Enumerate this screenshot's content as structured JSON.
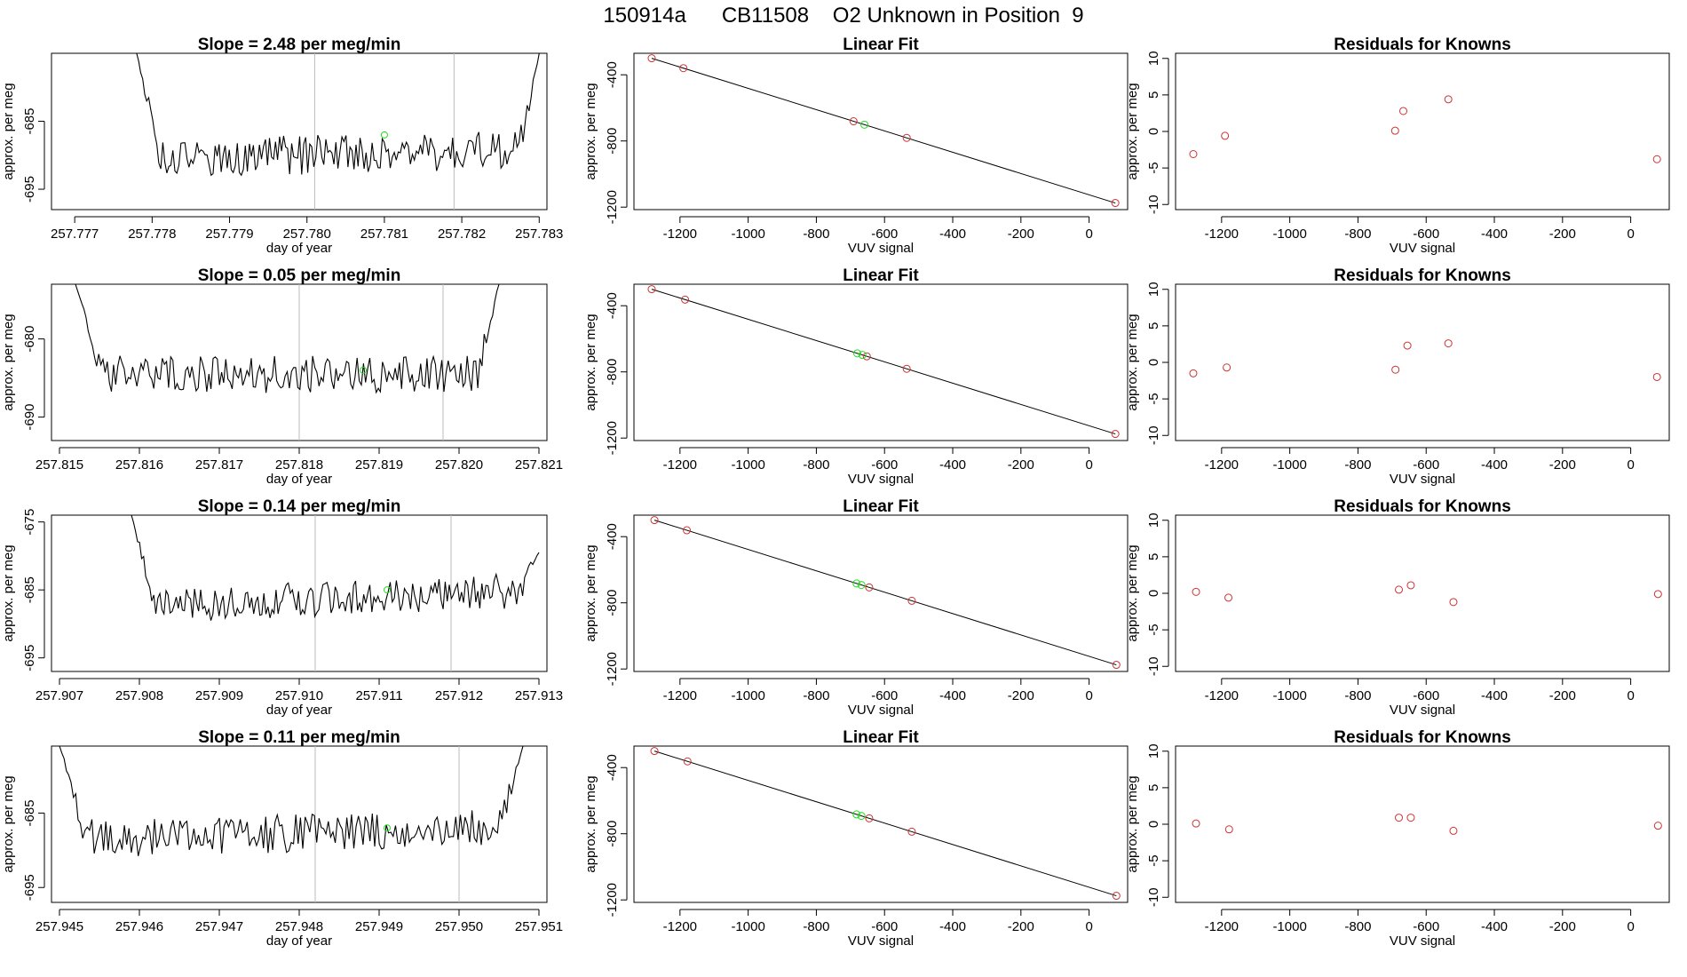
{
  "figure": {
    "title": "150914a      CB11508    O2 Unknown in Position  9"
  },
  "rows": [
    {
      "trace": {
        "title": "Slope =  2.48  per meg/min",
        "xlabel": "day of year",
        "ylabel": "approx. per meg",
        "xlim": [
          257.7767,
          257.7831
        ],
        "ylim": [
          -698,
          -675
        ],
        "xticks": [
          "257.777",
          "257.778",
          "257.779",
          "257.780",
          "257.781",
          "257.782",
          "257.783"
        ],
        "yticks": [
          "-685",
          "-695"
        ],
        "x_start": 257.7778,
        "x_end": 257.783,
        "base": -690.5,
        "rise": 1.3,
        "amp": 1.8,
        "seed": 1,
        "start_y": -675,
        "end_y": -675,
        "vlines": [
          257.7801,
          257.7819
        ],
        "marker": [
          257.781,
          -687
        ]
      },
      "fit": {
        "title": "Linear Fit",
        "xlabel": "VUV signal",
        "ylabel": "approx. per meg",
        "xlim": [
          -1335,
          113
        ],
        "ylim": [
          -1215,
          -270
        ],
        "xticks": [
          "-1200",
          "-1000",
          "-800",
          "-600",
          "-400",
          "-200",
          "0"
        ],
        "yticks": [
          "-400",
          "-800",
          "-1200"
        ],
        "known_x": [
          -1283,
          -1190,
          -691,
          -535,
          77
        ],
        "green_x": [
          -659
        ],
        "line_x": [
          -1283,
          77
        ]
      },
      "resid": {
        "title": "Residuals for Knowns",
        "xlabel": "VUV signal",
        "ylabel": "approx. per meg",
        "xlim": [
          -1335,
          113
        ],
        "ylim": [
          -10.7,
          10.7
        ],
        "xticks": [
          "-1200",
          "-1000",
          "-800",
          "-600",
          "-400",
          "-200",
          "0"
        ],
        "yticks": [
          "-10",
          "-5",
          "0",
          "5",
          "10"
        ],
        "x": [
          -1283,
          -1190,
          -691,
          -667,
          -535,
          77
        ],
        "y": [
          -3.1,
          -0.6,
          0.1,
          2.8,
          4.4,
          -3.8
        ]
      }
    },
    {
      "trace": {
        "title": "Slope =  0.05  per meg/min",
        "xlabel": "day of year",
        "ylabel": "approx. per meg",
        "xlim": [
          257.8149,
          257.8211
        ],
        "ylim": [
          -693,
          -673
        ],
        "xticks": [
          "257.815",
          "257.816",
          "257.817",
          "257.818",
          "257.819",
          "257.820",
          "257.821"
        ],
        "yticks": [
          "-680",
          "-690"
        ],
        "x_start": 257.8152,
        "x_end": 257.8205,
        "base": -684.5,
        "rise": 0,
        "amp": 1.5,
        "seed": 2,
        "start_y": -673,
        "end_y": -673,
        "vlines": [
          257.818,
          257.8198
        ],
        "marker": [
          257.8188,
          -684
        ]
      },
      "fit": {
        "title": "Linear Fit",
        "xlabel": "VUV signal",
        "ylabel": "approx. per meg",
        "xlim": [
          -1335,
          113
        ],
        "ylim": [
          -1215,
          -270
        ],
        "xticks": [
          "-1200",
          "-1000",
          "-800",
          "-600",
          "-400",
          "-200",
          "0"
        ],
        "yticks": [
          "-400",
          "-800",
          "-1200"
        ],
        "known_x": [
          -1283,
          -1185,
          -652,
          -535,
          77
        ],
        "green_x": [
          -680,
          -665
        ],
        "line_x": [
          -1283,
          77
        ]
      },
      "resid": {
        "title": "Residuals for Knowns",
        "xlabel": "VUV signal",
        "ylabel": "approx. per meg",
        "xlim": [
          -1335,
          113
        ],
        "ylim": [
          -10.7,
          10.7
        ],
        "xticks": [
          "-1200",
          "-1000",
          "-800",
          "-600",
          "-400",
          "-200",
          "0"
        ],
        "yticks": [
          "-10",
          "-5",
          "0",
          "5",
          "10"
        ],
        "x": [
          -1283,
          -1185,
          -690,
          -655,
          -535,
          77
        ],
        "y": [
          -1.5,
          -0.7,
          -1.0,
          2.3,
          2.6,
          -2.0
        ]
      }
    },
    {
      "trace": {
        "title": "Slope =  0.14  per meg/min",
        "xlabel": "day of year",
        "ylabel": "approx. per meg",
        "xlim": [
          257.9069,
          257.9131
        ],
        "ylim": [
          -697,
          -674
        ],
        "xticks": [
          "257.907",
          "257.908",
          "257.909",
          "257.910",
          "257.911",
          "257.912",
          "257.913"
        ],
        "yticks": [
          "-675",
          "-685",
          "-695"
        ],
        "x_start": 257.9079,
        "x_end": 257.913,
        "base": -687.5,
        "rise": 2.5,
        "amp": 1.6,
        "seed": 3,
        "start_y": -674,
        "end_y": -679.5,
        "vlines": [
          257.9102,
          257.9119
        ],
        "marker": [
          257.9111,
          -685
        ]
      },
      "fit": {
        "title": "Linear Fit",
        "xlabel": "VUV signal",
        "ylabel": "approx. per meg",
        "xlim": [
          -1335,
          113
        ],
        "ylim": [
          -1215,
          -270
        ],
        "xticks": [
          "-1200",
          "-1000",
          "-800",
          "-600",
          "-400",
          "-200",
          "0"
        ],
        "yticks": [
          "-400",
          "-800",
          "-1200"
        ],
        "known_x": [
          -1275,
          -1180,
          -645,
          -520,
          80
        ],
        "green_x": [
          -682,
          -668
        ],
        "line_x": [
          -1275,
          80
        ]
      },
      "resid": {
        "title": "Residuals for Knowns",
        "xlabel": "VUV signal",
        "ylabel": "approx. per meg",
        "xlim": [
          -1335,
          113
        ],
        "ylim": [
          -10.7,
          10.7
        ],
        "xticks": [
          "-1200",
          "-1000",
          "-800",
          "-600",
          "-400",
          "-200",
          "0"
        ],
        "yticks": [
          "-10",
          "-5",
          "0",
          "5",
          "10"
        ],
        "x": [
          -1275,
          -1180,
          -680,
          -645,
          -520,
          80
        ],
        "y": [
          0.2,
          -0.6,
          0.5,
          1.1,
          -1.2,
          -0.1
        ]
      }
    },
    {
      "trace": {
        "title": "Slope =  0.11  per meg/min",
        "xlabel": "day of year",
        "ylabel": "approx. per meg",
        "xlim": [
          257.9449,
          257.9511
        ],
        "ylim": [
          -697,
          -676
        ],
        "xticks": [
          "257.945",
          "257.946",
          "257.947",
          "257.948",
          "257.949",
          "257.950",
          "257.951"
        ],
        "yticks": [
          "-685",
          "-695"
        ],
        "x_start": 257.945,
        "x_end": 257.9508,
        "base": -688.5,
        "rise": 1.5,
        "amp": 1.6,
        "seed": 4,
        "start_y": -676,
        "end_y": -676,
        "vlines": [
          257.9482,
          257.95
        ],
        "marker": [
          257.9491,
          -687
        ]
      },
      "fit": {
        "title": "Linear Fit",
        "xlabel": "VUV signal",
        "ylabel": "approx. per meg",
        "xlim": [
          -1335,
          113
        ],
        "ylim": [
          -1215,
          -270
        ],
        "xticks": [
          "-1200",
          "-1000",
          "-800",
          "-600",
          "-400",
          "-200",
          "0"
        ],
        "yticks": [
          "-400",
          "-800",
          "-1200"
        ],
        "known_x": [
          -1275,
          -1178,
          -645,
          -520,
          80
        ],
        "green_x": [
          -682,
          -668
        ],
        "line_x": [
          -1275,
          80
        ]
      },
      "resid": {
        "title": "Residuals for Knowns",
        "xlabel": "VUV signal",
        "ylabel": "approx. per meg",
        "xlim": [
          -1335,
          113
        ],
        "ylim": [
          -10.7,
          10.7
        ],
        "xticks": [
          "-1200",
          "-1000",
          "-800",
          "-600",
          "-400",
          "-200",
          "0"
        ],
        "yticks": [
          "-10",
          "-5",
          "0",
          "5",
          "10"
        ],
        "x": [
          -1275,
          -1178,
          -680,
          -645,
          -520,
          80
        ],
        "y": [
          0.1,
          -0.7,
          0.9,
          0.9,
          -0.9,
          -0.2
        ]
      }
    }
  ],
  "colors": {
    "trace": "#000000",
    "marker_green": "#22dd22",
    "known_red": "#cc3333",
    "vline": "#bbbbbb",
    "axis": "#000000"
  },
  "chart_data": [
    {
      "type": "line",
      "title": "Slope =  2.48  per meg/min",
      "xlabel": "day of year",
      "ylabel": "approx. per meg",
      "xlim": [
        257.7767,
        257.7831
      ],
      "ylim": [
        -698,
        -675
      ]
    },
    {
      "type": "scatter",
      "title": "Linear Fit",
      "xlabel": "VUV signal",
      "ylabel": "approx. per meg",
      "x": [
        -1283,
        -1190,
        -691,
        -659,
        -535,
        77
      ],
      "y": [
        -300,
        -335,
        -640,
        -665,
        -775,
        -1175
      ]
    },
    {
      "type": "scatter",
      "title": "Residuals for Knowns",
      "xlabel": "VUV signal",
      "ylabel": "approx. per meg",
      "x": [
        -1283,
        -1190,
        -691,
        -667,
        -535,
        77
      ],
      "y": [
        -3.1,
        -0.6,
        0.1,
        2.8,
        4.4,
        -3.8
      ]
    }
  ]
}
